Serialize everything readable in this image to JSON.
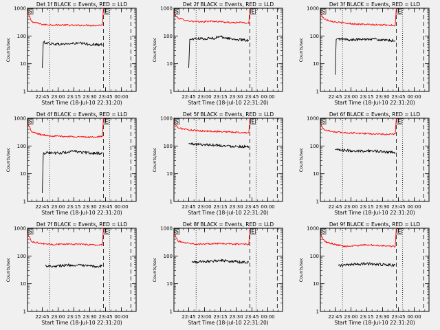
{
  "colors": {
    "background": "#f0f0f0",
    "axes": "#000000",
    "events": "#000000",
    "lld": "#ff0000"
  },
  "chart_data": [
    {
      "type": "line",
      "title": "Det 1f BLACK = Events, RED = LLD",
      "xlabel": "Start Time (18-Jul-10 22:31:20)",
      "ylabel": "Counts/sec",
      "yscale": "log",
      "ylim": [
        1,
        1000
      ],
      "xlim": [
        "22:31",
        "00:14"
      ],
      "xticks": [
        "22:45",
        "23:00",
        "23:15",
        "23:30",
        "23:45",
        "00:00"
      ],
      "yticks": [
        "1",
        "10",
        "100",
        "1000"
      ],
      "markers": [
        "S",
        "E"
      ],
      "vlines": [
        {
          "style": "dotted",
          "x": "22:52"
        },
        {
          "style": "dashed",
          "x": "23:43"
        },
        {
          "style": "dotted",
          "x": "23:49"
        },
        {
          "style": "dashed",
          "x": "00:09"
        }
      ],
      "series": [
        {
          "name": "LLD",
          "color": "#ff0000",
          "x": [
            "22:31",
            "22:35",
            "22:45",
            "22:55",
            "23:05",
            "23:15",
            "23:25",
            "23:35",
            "23:42",
            "23:43"
          ],
          "y": [
            700,
            330,
            260,
            250,
            250,
            240,
            245,
            240,
            250,
            1000
          ]
        },
        {
          "name": "Events",
          "color": "#000000",
          "x": [
            "22:45",
            "22:46",
            "22:50",
            "23:00",
            "23:10",
            "23:20",
            "23:30",
            "23:40",
            "23:42"
          ],
          "y": [
            7,
            60,
            55,
            50,
            52,
            55,
            50,
            48,
            50
          ]
        }
      ]
    },
    {
      "type": "line",
      "title": "Det 2f BLACK = Events, RED = LLD",
      "xlabel": "Start Time (18-Jul-10 22:31:20)",
      "ylabel": "Counts/sec",
      "yscale": "log",
      "ylim": [
        1,
        1000
      ],
      "xlim": [
        "22:31",
        "00:14"
      ],
      "xticks": [
        "22:45",
        "23:00",
        "23:15",
        "23:30",
        "23:45",
        "00:00"
      ],
      "yticks": [
        "1",
        "10",
        "100",
        "1000"
      ],
      "markers": [
        "S",
        "E"
      ],
      "vlines": [
        {
          "style": "dotted",
          "x": "22:52"
        },
        {
          "style": "dashed",
          "x": "23:43"
        },
        {
          "style": "dotted",
          "x": "23:49"
        },
        {
          "style": "dashed",
          "x": "00:09"
        }
      ],
      "series": [
        {
          "name": "LLD",
          "color": "#ff0000",
          "x": [
            "22:31",
            "22:35",
            "22:45",
            "22:55",
            "23:05",
            "23:15",
            "23:25",
            "23:35",
            "23:42",
            "23:43"
          ],
          "y": [
            600,
            440,
            350,
            320,
            340,
            330,
            300,
            310,
            280,
            1000
          ]
        },
        {
          "name": "Events",
          "color": "#000000",
          "x": [
            "22:45",
            "22:46",
            "22:50",
            "23:00",
            "23:10",
            "23:15",
            "23:20",
            "23:30",
            "23:40",
            "23:42"
          ],
          "y": [
            7,
            75,
            80,
            80,
            85,
            95,
            85,
            75,
            70,
            70
          ]
        }
      ]
    },
    {
      "type": "line",
      "title": "Det 3f BLACK = Events, RED = LLD",
      "xlabel": "Start Time (18-Jul-10 22:31:20)",
      "ylabel": "Counts/sec",
      "yscale": "log",
      "ylim": [
        1,
        1000
      ],
      "xlim": [
        "22:31",
        "00:14"
      ],
      "xticks": [
        "22:45",
        "23:00",
        "23:15",
        "23:30",
        "23:45",
        "00:00"
      ],
      "yticks": [
        "1",
        "10",
        "100",
        "1000"
      ],
      "markers": [
        "S",
        "E"
      ],
      "vlines": [
        {
          "style": "dotted",
          "x": "22:52"
        },
        {
          "style": "dashed",
          "x": "23:43"
        },
        {
          "style": "dotted",
          "x": "23:49"
        },
        {
          "style": "dashed",
          "x": "00:09"
        }
      ],
      "series": [
        {
          "name": "LLD",
          "color": "#ff0000",
          "x": [
            "22:31",
            "22:35",
            "22:45",
            "22:55",
            "23:05",
            "23:15",
            "23:25",
            "23:35",
            "23:42",
            "23:43"
          ],
          "y": [
            650,
            400,
            320,
            290,
            270,
            260,
            250,
            250,
            240,
            1000
          ]
        },
        {
          "name": "Events",
          "color": "#000000",
          "x": [
            "22:45",
            "22:46",
            "22:50",
            "23:00",
            "23:10",
            "23:20",
            "23:30",
            "23:40",
            "23:42"
          ],
          "y": [
            4,
            75,
            78,
            72,
            75,
            80,
            70,
            68,
            70
          ]
        }
      ]
    },
    {
      "type": "line",
      "title": "Det 4f BLACK = Events, RED = LLD",
      "xlabel": "Start Time (18-Jul-10 22:31:20)",
      "ylabel": "Counts/sec",
      "yscale": "log",
      "ylim": [
        1,
        1000
      ],
      "xlim": [
        "22:31",
        "00:14"
      ],
      "xticks": [
        "22:45",
        "23:00",
        "23:15",
        "23:30",
        "23:45",
        "00:00"
      ],
      "yticks": [
        "1",
        "10",
        "100",
        "1000"
      ],
      "markers": [
        "S",
        "E"
      ],
      "vlines": [
        {
          "style": "dotted",
          "x": "22:52"
        },
        {
          "style": "dashed",
          "x": "23:43"
        },
        {
          "style": "dotted",
          "x": "23:49"
        },
        {
          "style": "dashed",
          "x": "00:09"
        }
      ],
      "series": [
        {
          "name": "LLD",
          "color": "#ff0000",
          "x": [
            "22:31",
            "22:35",
            "22:45",
            "22:55",
            "23:05",
            "23:15",
            "23:25",
            "23:35",
            "23:42",
            "23:43"
          ],
          "y": [
            700,
            320,
            250,
            230,
            220,
            220,
            210,
            210,
            220,
            1000
          ]
        },
        {
          "name": "Events",
          "color": "#000000",
          "x": [
            "22:45",
            "22:46",
            "22:50",
            "23:00",
            "23:10",
            "23:15",
            "23:20",
            "23:30",
            "23:40",
            "23:42"
          ],
          "y": [
            2,
            55,
            58,
            55,
            60,
            65,
            60,
            55,
            55,
            55
          ]
        }
      ]
    },
    {
      "type": "line",
      "title": "Det 5f BLACK = Events, RED = LLD",
      "xlabel": "Start Time (18-Jul-10 22:31:20)",
      "ylabel": "Counts/sec",
      "yscale": "log",
      "ylim": [
        1,
        1000
      ],
      "xlim": [
        "22:31",
        "00:14"
      ],
      "xticks": [
        "22:45",
        "23:00",
        "23:15",
        "23:30",
        "23:45",
        "00:00"
      ],
      "yticks": [
        "1",
        "10",
        "100",
        "1000"
      ],
      "markers": [
        "S",
        "E"
      ],
      "vlines": [
        {
          "style": "dotted",
          "x": "22:52"
        },
        {
          "style": "dashed",
          "x": "23:43"
        },
        {
          "style": "dotted",
          "x": "23:49"
        },
        {
          "style": "dashed",
          "x": "00:09"
        }
      ],
      "series": [
        {
          "name": "LLD",
          "color": "#ff0000",
          "x": [
            "22:31",
            "22:35",
            "22:45",
            "22:55",
            "23:05",
            "23:15",
            "23:25",
            "23:35",
            "23:42",
            "23:43"
          ],
          "y": [
            700,
            450,
            380,
            350,
            340,
            330,
            320,
            300,
            300,
            1000
          ]
        },
        {
          "name": "Events",
          "color": "#000000",
          "x": [
            "22:45",
            "22:50",
            "23:00",
            "23:10",
            "23:20",
            "23:30",
            "23:40",
            "23:42"
          ],
          "y": [
            120,
            118,
            112,
            110,
            100,
            98,
            95,
            95
          ]
        }
      ]
    },
    {
      "type": "line",
      "title": "Det 6f BLACK = Events, RED = LLD",
      "xlabel": "Start Time (18-Jul-10 22:31:20)",
      "ylabel": "Counts/sec",
      "yscale": "log",
      "ylim": [
        1,
        1000
      ],
      "xlim": [
        "22:31",
        "00:14"
      ],
      "xticks": [
        "22:45",
        "23:00",
        "23:15",
        "23:30",
        "23:45",
        "00:00"
      ],
      "yticks": [
        "1",
        "10",
        "100",
        "1000"
      ],
      "markers": [
        "S",
        "E"
      ],
      "vlines": [
        {
          "style": "dotted",
          "x": "22:52"
        },
        {
          "style": "dashed",
          "x": "23:43"
        },
        {
          "style": "dotted",
          "x": "23:49"
        },
        {
          "style": "dashed",
          "x": "00:09"
        }
      ],
      "series": [
        {
          "name": "LLD",
          "color": "#ff0000",
          "x": [
            "22:31",
            "22:35",
            "22:45",
            "22:55",
            "23:05",
            "23:15",
            "23:25",
            "23:35",
            "23:42",
            "23:43"
          ],
          "y": [
            600,
            380,
            320,
            300,
            290,
            280,
            270,
            260,
            270,
            1000
          ]
        },
        {
          "name": "Events",
          "color": "#000000",
          "x": [
            "22:45",
            "22:50",
            "23:00",
            "23:10",
            "23:20",
            "23:30",
            "23:40",
            "23:42"
          ],
          "y": [
            72,
            70,
            68,
            66,
            68,
            62,
            60,
            58
          ]
        }
      ]
    },
    {
      "type": "line",
      "title": "Det 7f BLACK = Events, RED = LLD",
      "xlabel": "Start Time (18-Jul-10 22:31:20)",
      "ylabel": "Counts/sec",
      "yscale": "log",
      "ylim": [
        1,
        1000
      ],
      "xlim": [
        "22:31",
        "00:14"
      ],
      "xticks": [
        "22:45",
        "23:00",
        "23:15",
        "23:30",
        "23:45",
        "00:00"
      ],
      "yticks": [
        "1",
        "10",
        "100",
        "1000"
      ],
      "markers": [
        "S",
        "E"
      ],
      "vlines": [
        {
          "style": "dotted",
          "x": "22:52"
        },
        {
          "style": "dashed",
          "x": "23:43"
        },
        {
          "style": "dotted",
          "x": "23:49"
        },
        {
          "style": "dashed",
          "x": "00:09"
        }
      ],
      "series": [
        {
          "name": "LLD",
          "color": "#ff0000",
          "x": [
            "22:31",
            "22:35",
            "22:45",
            "22:55",
            "23:05",
            "23:15",
            "23:25",
            "23:35",
            "23:42",
            "23:43"
          ],
          "y": [
            650,
            330,
            280,
            260,
            270,
            270,
            260,
            250,
            250,
            1000
          ]
        },
        {
          "name": "Events",
          "color": "#000000",
          "x": [
            "22:48",
            "22:55",
            "23:05",
            "23:15",
            "23:25",
            "23:35",
            "23:42"
          ],
          "y": [
            45,
            43,
            46,
            47,
            44,
            42,
            44
          ]
        }
      ]
    },
    {
      "type": "line",
      "title": "Det 8f BLACK = Events, RED = LLD",
      "xlabel": "Start Time (18-Jul-10 22:31:20)",
      "ylabel": "Counts/sec",
      "yscale": "log",
      "ylim": [
        1,
        1000
      ],
      "xlim": [
        "22:31",
        "00:14"
      ],
      "xticks": [
        "22:45",
        "23:00",
        "23:15",
        "23:30",
        "23:45",
        "00:00"
      ],
      "yticks": [
        "1",
        "10",
        "100",
        "1000"
      ],
      "markers": [
        "S",
        "E"
      ],
      "vlines": [
        {
          "style": "dotted",
          "x": "22:52"
        },
        {
          "style": "dashed",
          "x": "23:43"
        },
        {
          "style": "dotted",
          "x": "23:49"
        },
        {
          "style": "dashed",
          "x": "00:09"
        }
      ],
      "series": [
        {
          "name": "LLD",
          "color": "#ff0000",
          "x": [
            "22:31",
            "22:35",
            "22:45",
            "22:55",
            "23:05",
            "23:15",
            "23:25",
            "23:35",
            "23:42",
            "23:43"
          ],
          "y": [
            650,
            340,
            290,
            270,
            280,
            280,
            270,
            270,
            260,
            1000
          ]
        },
        {
          "name": "Events",
          "color": "#000000",
          "x": [
            "22:48",
            "22:55",
            "23:05",
            "23:15",
            "23:25",
            "23:35",
            "23:42"
          ],
          "y": [
            60,
            62,
            65,
            70,
            65,
            60,
            60
          ]
        }
      ]
    },
    {
      "type": "line",
      "title": "Det 9f BLACK = Events, RED = LLD",
      "xlabel": "Start Time (18-Jul-10 22:31:20)",
      "ylabel": "Counts/sec",
      "yscale": "log",
      "ylim": [
        1,
        1000
      ],
      "xlim": [
        "22:31",
        "00:14"
      ],
      "xticks": [
        "22:45",
        "23:00",
        "23:15",
        "23:30",
        "23:45",
        "00:00"
      ],
      "yticks": [
        "1",
        "10",
        "100",
        "1000"
      ],
      "markers": [
        "S",
        "E"
      ],
      "vlines": [
        {
          "style": "dotted",
          "x": "22:52"
        },
        {
          "style": "dashed",
          "x": "23:43"
        },
        {
          "style": "dotted",
          "x": "23:49"
        },
        {
          "style": "dashed",
          "x": "00:09"
        }
      ],
      "series": [
        {
          "name": "LLD",
          "color": "#ff0000",
          "x": [
            "22:31",
            "22:35",
            "22:45",
            "22:55",
            "23:05",
            "23:15",
            "23:25",
            "23:35",
            "23:42",
            "23:43"
          ],
          "y": [
            600,
            330,
            260,
            220,
            240,
            250,
            240,
            230,
            220,
            1000
          ]
        },
        {
          "name": "Events",
          "color": "#000000",
          "x": [
            "22:48",
            "22:55",
            "23:05",
            "23:15",
            "23:25",
            "23:35",
            "23:42"
          ],
          "y": [
            45,
            47,
            50,
            52,
            50,
            48,
            47
          ]
        }
      ]
    }
  ]
}
